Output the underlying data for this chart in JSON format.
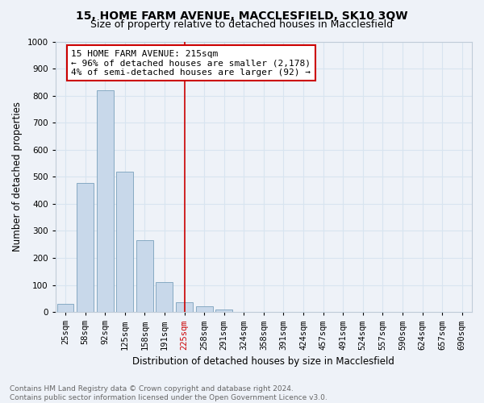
{
  "title": "15, HOME FARM AVENUE, MACCLESFIELD, SK10 3QW",
  "subtitle": "Size of property relative to detached houses in Macclesfield",
  "xlabel": "Distribution of detached houses by size in Macclesfield",
  "ylabel": "Number of detached properties",
  "footer_line1": "Contains HM Land Registry data © Crown copyright and database right 2024.",
  "footer_line2": "Contains public sector information licensed under the Open Government Licence v3.0.",
  "categories": [
    "25sqm",
    "58sqm",
    "92sqm",
    "125sqm",
    "158sqm",
    "191sqm",
    "225sqm",
    "258sqm",
    "291sqm",
    "324sqm",
    "358sqm",
    "391sqm",
    "424sqm",
    "457sqm",
    "491sqm",
    "524sqm",
    "557sqm",
    "590sqm",
    "624sqm",
    "657sqm",
    "690sqm"
  ],
  "values": [
    30,
    478,
    820,
    518,
    265,
    110,
    35,
    22,
    10,
    0,
    0,
    0,
    0,
    0,
    0,
    0,
    0,
    0,
    0,
    0,
    0
  ],
  "bar_color": "#c8d8ea",
  "bar_edge_color": "#7aa0bc",
  "highlight_bar_index": 6,
  "highlight_color": "#cc0000",
  "annotation_text": "15 HOME FARM AVENUE: 215sqm\n← 96% of detached houses are smaller (2,178)\n4% of semi-detached houses are larger (92) →",
  "annotation_box_color": "#ffffff",
  "annotation_box_edge": "#cc0000",
  "ylim": [
    0,
    1000
  ],
  "yticks": [
    0,
    100,
    200,
    300,
    400,
    500,
    600,
    700,
    800,
    900,
    1000
  ],
  "grid_color": "#d8e4f0",
  "bg_color": "#eef2f8",
  "title_fontsize": 10,
  "subtitle_fontsize": 9,
  "axis_label_fontsize": 8.5,
  "tick_fontsize": 7.5,
  "annotation_fontsize": 8,
  "footer_fontsize": 6.5
}
